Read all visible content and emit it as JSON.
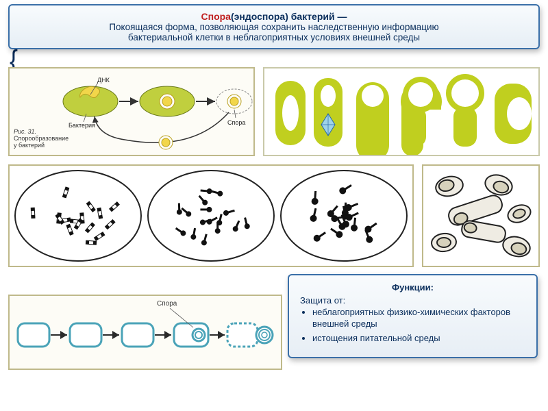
{
  "header": {
    "title_accent": "Спора",
    "title_rest": "(эндоспора) бактерий —",
    "line2": "Покоящаяся форма, позволяющая сохранить наследственную информацию",
    "line3": "бактериальной клетки в неблагоприятных условиях внешней среды"
  },
  "sporulation": {
    "fig_label": "Рис. 31.",
    "fig_text": "Спорообразование у бактерий",
    "label_dna": "ДНК",
    "label_bacterium": "Бактерия",
    "label_spore": "Спора",
    "bacterium_fill": "#c0cf3e",
    "dna_fill": "#f2d64a",
    "arrow_color": "#333333"
  },
  "types_panel": {
    "shape_fill": "#c0cf1f",
    "hole_fill": "#ffffff",
    "crystal_stroke": "#2a6aa8",
    "crystal_fill": "#9fd3e8"
  },
  "microscopy": {
    "border_stroke": "#222222",
    "cell_fill": "#111111",
    "count_per_circle": 16
  },
  "endospores": {
    "outline": "#222222",
    "fill": "#efece3"
  },
  "steps_panel": {
    "caption": "Спора",
    "outline": "#4aa3b8",
    "fill": "#ffffff",
    "arrow_color": "#2a2a2a"
  },
  "functions": {
    "title": "Функции:",
    "intro": "Защита от:",
    "items": [
      "неблагоприятных физико-химических факторов внешней среды",
      "истощения питательной среды"
    ]
  },
  "colors": {
    "header_border": "#3a6fa8",
    "panel_border": "#bfb98a"
  }
}
